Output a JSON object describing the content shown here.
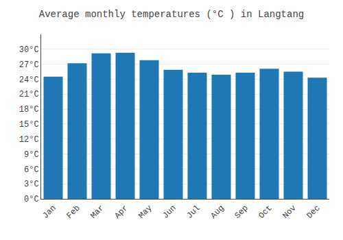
{
  "chart_data": {
    "type": "bar",
    "title": "Average monthly temperatures (°C ) in Langtang",
    "categories": [
      "Jan",
      "Feb",
      "Mar",
      "Apr",
      "May",
      "Jun",
      "Jul",
      "Aug",
      "Sep",
      "Oct",
      "Nov",
      "Dec"
    ],
    "values": [
      24.5,
      27.2,
      29.2,
      29.3,
      27.8,
      25.9,
      25.3,
      24.9,
      25.3,
      26.1,
      25.5,
      24.3
    ],
    "ylim": [
      0,
      33
    ],
    "yticks": [
      {
        "value": 0,
        "label": "0°C"
      },
      {
        "value": 3,
        "label": "3°C"
      },
      {
        "value": 6,
        "label": "6°C"
      },
      {
        "value": 9,
        "label": "9°C"
      },
      {
        "value": 12,
        "label": "12°C"
      },
      {
        "value": 15,
        "label": "15°C"
      },
      {
        "value": 18,
        "label": "18°C"
      },
      {
        "value": 21,
        "label": "21°C"
      },
      {
        "value": 24,
        "label": "24°C"
      },
      {
        "value": 27,
        "label": "27°C"
      },
      {
        "value": 30,
        "label": "30°C"
      }
    ],
    "grid": true
  }
}
